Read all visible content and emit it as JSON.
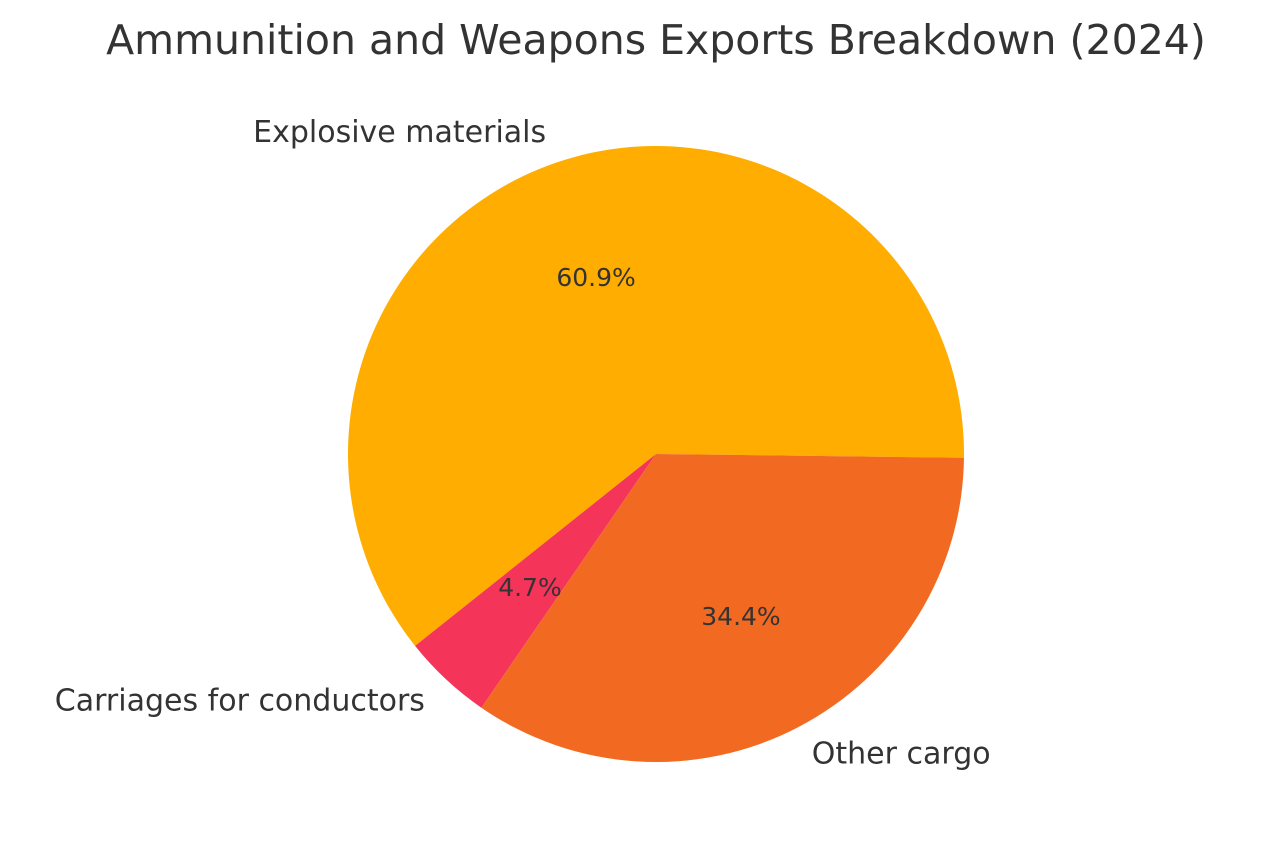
{
  "chart_data": {
    "type": "pie",
    "title": "Ammunition and Weapons Exports Breakdown (2024)",
    "slices": [
      {
        "label": "Explosive materials",
        "value": 60.9,
        "pct_label": "60.9%",
        "color": "#FFAD00"
      },
      {
        "label": "Carriages for conductors",
        "value": 4.7,
        "pct_label": "4.7%",
        "color": "#F5345A"
      },
      {
        "label": "Other cargo",
        "value": 34.4,
        "pct_label": "34.4%",
        "color": "#F26A22"
      }
    ],
    "start_angle_deg": -0.7,
    "direction": "counterclockwise",
    "legend": "none"
  }
}
